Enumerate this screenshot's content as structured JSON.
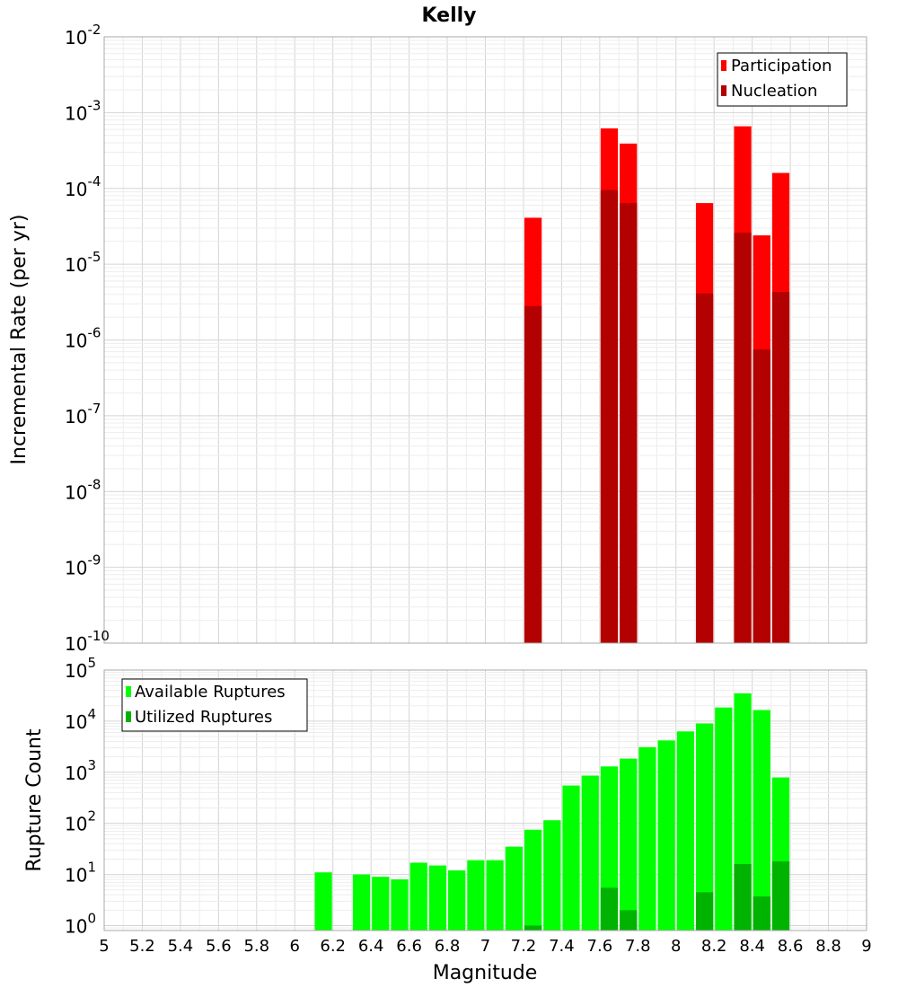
{
  "title": "Kelly",
  "colors": {
    "participation": "#ff0000",
    "nucleation": "#b30000",
    "available": "#00ff00",
    "utilized": "#00b300"
  },
  "chart_data": [
    {
      "type": "bar",
      "panel": "top",
      "ylabel": "Incremental Rate (per yr)",
      "yscale": "log",
      "ylim": [
        1e-10,
        0.01
      ],
      "xlim": [
        5,
        9
      ],
      "bin_width": 0.1,
      "legend_position": "top-right",
      "yticks": [
        {
          "base": "10",
          "exp": "-10"
        },
        {
          "base": "10",
          "exp": "-9"
        },
        {
          "base": "10",
          "exp": "-8"
        },
        {
          "base": "10",
          "exp": "-7"
        },
        {
          "base": "10",
          "exp": "-6"
        },
        {
          "base": "10",
          "exp": "-5"
        },
        {
          "base": "10",
          "exp": "-4"
        },
        {
          "base": "10",
          "exp": "-3"
        },
        {
          "base": "10",
          "exp": "-2"
        }
      ],
      "series": [
        {
          "name": "Participation",
          "color_key": "participation",
          "points": [
            {
              "x": 7.25,
              "y": 4.1e-05
            },
            {
              "x": 7.65,
              "y": 0.00062
            },
            {
              "x": 7.75,
              "y": 0.00039
            },
            {
              "x": 8.15,
              "y": 6.4e-05
            },
            {
              "x": 8.35,
              "y": 0.00066
            },
            {
              "x": 8.45,
              "y": 2.4e-05
            },
            {
              "x": 8.55,
              "y": 0.00016
            }
          ]
        },
        {
          "name": "Nucleation",
          "color_key": "nucleation",
          "points": [
            {
              "x": 7.25,
              "y": 2.8e-06
            },
            {
              "x": 7.65,
              "y": 9.5e-05
            },
            {
              "x": 7.75,
              "y": 6.4e-05
            },
            {
              "x": 8.15,
              "y": 4.1e-06
            },
            {
              "x": 8.35,
              "y": 2.6e-05
            },
            {
              "x": 8.45,
              "y": 7.5e-07
            },
            {
              "x": 8.55,
              "y": 4.3e-06
            }
          ]
        }
      ]
    },
    {
      "type": "bar",
      "panel": "bottom",
      "ylabel": "Rupture Count",
      "xlabel": "Magnitude",
      "yscale": "log",
      "ylim": [
        0.8,
        100000
      ],
      "xlim": [
        5,
        9
      ],
      "bin_width": 0.1,
      "legend_position": "top-left",
      "xticks": [
        "5",
        "5.2",
        "5.4",
        "5.6",
        "5.8",
        "6",
        "6.2",
        "6.4",
        "6.6",
        "6.8",
        "7",
        "7.2",
        "7.4",
        "7.6",
        "7.8",
        "8",
        "8.2",
        "8.4",
        "8.6",
        "8.8",
        "9"
      ],
      "yticks": [
        {
          "base": "10",
          "exp": "0"
        },
        {
          "base": "10",
          "exp": "1"
        },
        {
          "base": "10",
          "exp": "2"
        },
        {
          "base": "10",
          "exp": "3"
        },
        {
          "base": "10",
          "exp": "4"
        },
        {
          "base": "10",
          "exp": "5"
        }
      ],
      "series": [
        {
          "name": "Available Ruptures",
          "color_key": "available",
          "points": [
            {
              "x": 6.15,
              "y": 11
            },
            {
              "x": 6.35,
              "y": 10
            },
            {
              "x": 6.45,
              "y": 9
            },
            {
              "x": 6.55,
              "y": 8
            },
            {
              "x": 6.65,
              "y": 17
            },
            {
              "x": 6.75,
              "y": 15
            },
            {
              "x": 6.85,
              "y": 12
            },
            {
              "x": 6.95,
              "y": 19
            },
            {
              "x": 7.05,
              "y": 19
            },
            {
              "x": 7.15,
              "y": 35
            },
            {
              "x": 7.25,
              "y": 75
            },
            {
              "x": 7.35,
              "y": 115
            },
            {
              "x": 7.45,
              "y": 550
            },
            {
              "x": 7.55,
              "y": 860
            },
            {
              "x": 7.65,
              "y": 1300
            },
            {
              "x": 7.75,
              "y": 1850
            },
            {
              "x": 7.85,
              "y": 3100
            },
            {
              "x": 7.95,
              "y": 4200
            },
            {
              "x": 8.05,
              "y": 6300
            },
            {
              "x": 8.15,
              "y": 9000
            },
            {
              "x": 8.25,
              "y": 18500
            },
            {
              "x": 8.35,
              "y": 35000
            },
            {
              "x": 8.45,
              "y": 16500
            },
            {
              "x": 8.55,
              "y": 790
            }
          ]
        },
        {
          "name": "Utilized Ruptures",
          "color_key": "utilized",
          "points": [
            {
              "x": 7.25,
              "y": 1
            },
            {
              "x": 7.65,
              "y": 5.5
            },
            {
              "x": 7.75,
              "y": 2
            },
            {
              "x": 8.15,
              "y": 4.5
            },
            {
              "x": 8.35,
              "y": 16
            },
            {
              "x": 8.45,
              "y": 3.7
            },
            {
              "x": 8.55,
              "y": 18
            }
          ]
        }
      ]
    }
  ]
}
